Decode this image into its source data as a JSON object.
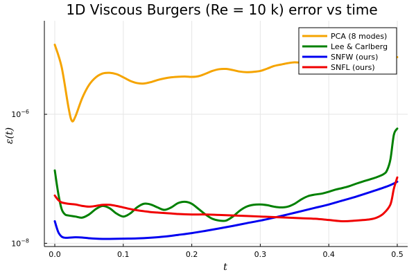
{
  "chart_data": {
    "type": "line",
    "title": "1D Viscous Burgers (Re = 10 k) error vs time",
    "xlabel": "t",
    "ylabel": "ε(t)",
    "xlim": [
      -0.0152,
      0.5152
    ],
    "ylog": true,
    "ylim_log10": [
      -8.05,
      -4.55
    ],
    "x_ticks": [
      0.0,
      0.1,
      0.2,
      0.3,
      0.4,
      0.5
    ],
    "x_tick_labels": [
      "0.0",
      "0.1",
      "0.2",
      "0.3",
      "0.4",
      "0.5"
    ],
    "y_ticks": [
      {
        "base": "10",
        "exp": "−6",
        "value_log10": -6
      },
      {
        "base": "10",
        "exp": "−8",
        "value_log10": -8
      }
    ],
    "grid": true,
    "legend_position": "top-right",
    "series": [
      {
        "name": "PCA (8 modes)",
        "color": "#f5a400",
        "x": [
          0.0,
          0.01,
          0.02,
          0.025,
          0.03,
          0.04,
          0.05,
          0.06,
          0.07,
          0.08,
          0.09,
          0.1,
          0.11,
          0.12,
          0.13,
          0.14,
          0.15,
          0.16,
          0.17,
          0.18,
          0.19,
          0.2,
          0.21,
          0.22,
          0.23,
          0.24,
          0.25,
          0.26,
          0.27,
          0.28,
          0.29,
          0.3,
          0.31,
          0.32,
          0.33,
          0.34,
          0.35,
          0.36,
          0.37,
          0.38,
          0.39,
          0.4,
          0.41,
          0.42,
          0.43,
          0.44,
          0.45,
          0.46,
          0.47,
          0.48,
          0.49,
          0.5
        ],
        "y": [
          1.2e-05,
          5.4e-06,
          1.28e-06,
          7.9e-07,
          9.2e-07,
          1.78e-06,
          2.85e-06,
          3.75e-06,
          4.3e-06,
          4.4e-06,
          4.2e-06,
          3.75e-06,
          3.3e-06,
          3.05e-06,
          3e-06,
          3.15e-06,
          3.4e-06,
          3.6e-06,
          3.75e-06,
          3.82e-06,
          3.85e-06,
          3.8e-06,
          3.9e-06,
          4.25e-06,
          4.7e-06,
          5e-06,
          5.05e-06,
          4.85e-06,
          4.6e-06,
          4.5e-06,
          4.55e-06,
          4.7e-06,
          5.1e-06,
          5.6e-06,
          5.9e-06,
          6.2e-06,
          6.4e-06,
          6.3e-06,
          6.2e-06,
          6.3e-06,
          6.6e-06,
          7e-06,
          7.4e-06,
          7.6e-06,
          7.6e-06,
          7.5e-06,
          7.4e-06,
          7.4e-06,
          7.5e-06,
          7.4e-06,
          7.1e-06,
          7.7e-06
        ]
      },
      {
        "name": "Lee & Carlberg",
        "color": "#008000",
        "x": [
          0.0,
          0.005,
          0.01,
          0.015,
          0.02,
          0.03,
          0.04,
          0.05,
          0.06,
          0.07,
          0.08,
          0.09,
          0.1,
          0.11,
          0.12,
          0.13,
          0.14,
          0.15,
          0.16,
          0.17,
          0.18,
          0.19,
          0.2,
          0.21,
          0.22,
          0.23,
          0.24,
          0.25,
          0.26,
          0.27,
          0.28,
          0.29,
          0.3,
          0.31,
          0.32,
          0.33,
          0.34,
          0.35,
          0.36,
          0.37,
          0.38,
          0.39,
          0.4,
          0.41,
          0.42,
          0.43,
          0.44,
          0.45,
          0.46,
          0.47,
          0.48,
          0.485,
          0.49,
          0.495,
          0.5
        ],
        "y": [
          1.35e-07,
          6e-08,
          3.4e-08,
          2.8e-08,
          2.7e-08,
          2.6e-08,
          2.5e-08,
          2.8e-08,
          3.4e-08,
          3.8e-08,
          3.5e-08,
          2.9e-08,
          2.6e-08,
          2.9e-08,
          3.6e-08,
          4.1e-08,
          4e-08,
          3.6e-08,
          3.3e-08,
          3.6e-08,
          4.2e-08,
          4.4e-08,
          4.1e-08,
          3.4e-08,
          2.8e-08,
          2.4e-08,
          2.25e-08,
          2.25e-08,
          2.6e-08,
          3.2e-08,
          3.7e-08,
          3.95e-08,
          4e-08,
          3.9e-08,
          3.7e-08,
          3.6e-08,
          3.7e-08,
          4.1e-08,
          4.8e-08,
          5.4e-08,
          5.7e-08,
          5.9e-08,
          6.3e-08,
          6.8e-08,
          7.2e-08,
          7.7e-08,
          8.4e-08,
          9.1e-08,
          9.8e-08,
          1.06e-07,
          1.18e-07,
          1.35e-07,
          2e-07,
          4.8e-07,
          6e-07
        ]
      },
      {
        "name": "SNFW (ours)",
        "color": "#0000f0",
        "x": [
          0.0,
          0.005,
          0.01,
          0.015,
          0.02,
          0.03,
          0.04,
          0.05,
          0.06,
          0.07,
          0.08,
          0.1,
          0.12,
          0.14,
          0.16,
          0.18,
          0.2,
          0.22,
          0.24,
          0.26,
          0.28,
          0.3,
          0.32,
          0.34,
          0.36,
          0.38,
          0.4,
          0.42,
          0.44,
          0.46,
          0.48,
          0.49,
          0.5
        ],
        "y": [
          2.2e-08,
          1.5e-08,
          1.27e-08,
          1.22e-08,
          1.22e-08,
          1.24e-08,
          1.23e-08,
          1.2e-08,
          1.18e-08,
          1.17e-08,
          1.17e-08,
          1.18e-08,
          1.19e-08,
          1.22e-08,
          1.27e-08,
          1.35e-08,
          1.44e-08,
          1.56e-08,
          1.7e-08,
          1.86e-08,
          2.05e-08,
          2.25e-08,
          2.5e-08,
          2.8e-08,
          3.15e-08,
          3.55e-08,
          4e-08,
          4.6e-08,
          5.3e-08,
          6.2e-08,
          7.3e-08,
          8e-08,
          9e-08
        ]
      },
      {
        "name": "SNFL (ours)",
        "color": "#f00000",
        "x": [
          0.0,
          0.005,
          0.01,
          0.02,
          0.03,
          0.04,
          0.05,
          0.06,
          0.07,
          0.08,
          0.09,
          0.1,
          0.11,
          0.12,
          0.13,
          0.14,
          0.15,
          0.16,
          0.17,
          0.18,
          0.2,
          0.22,
          0.24,
          0.26,
          0.28,
          0.3,
          0.32,
          0.34,
          0.36,
          0.38,
          0.4,
          0.42,
          0.44,
          0.46,
          0.47,
          0.48,
          0.49,
          0.495,
          0.5
        ],
        "y": [
          5.5e-08,
          4.7e-08,
          4.3e-08,
          4.1e-08,
          4e-08,
          3.8e-08,
          3.7e-08,
          3.8e-08,
          3.95e-08,
          3.95e-08,
          3.8e-08,
          3.6e-08,
          3.4e-08,
          3.25e-08,
          3.15e-08,
          3.05e-08,
          3e-08,
          2.95e-08,
          2.9e-08,
          2.85e-08,
          2.8e-08,
          2.8e-08,
          2.75e-08,
          2.7e-08,
          2.65e-08,
          2.6e-08,
          2.55e-08,
          2.5e-08,
          2.45e-08,
          2.4e-08,
          2.3e-08,
          2.2e-08,
          2.25e-08,
          2.35e-08,
          2.5e-08,
          2.9e-08,
          4e-08,
          7e-08,
          1.05e-07
        ]
      }
    ]
  }
}
